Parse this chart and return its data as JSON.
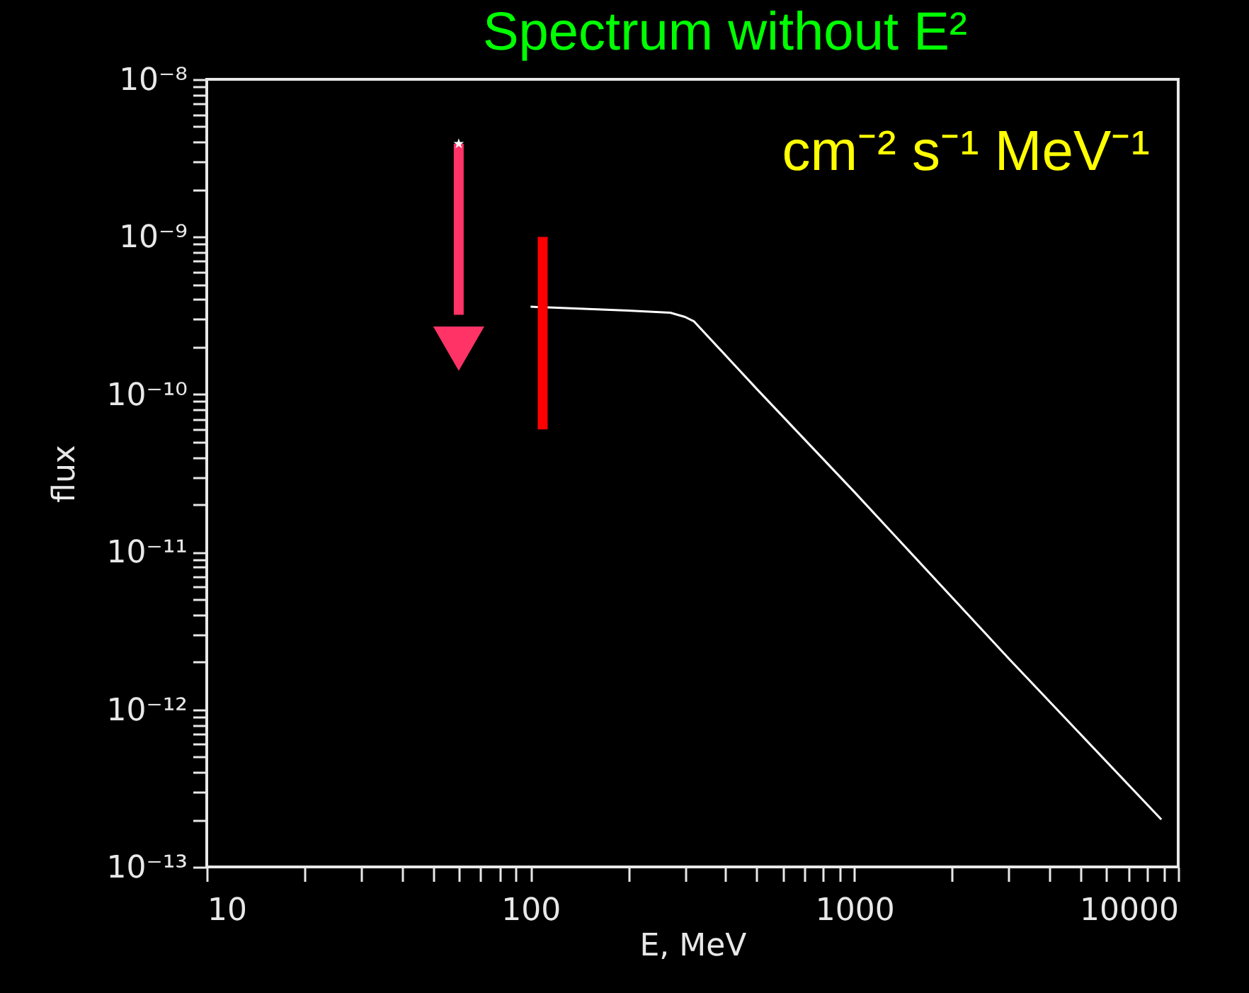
{
  "chart_data": {
    "type": "line",
    "title": "Spectrum without E²",
    "xlabel": "E, MeV",
    "ylabel": "flux",
    "log": "xy",
    "annotations": [
      "cm⁻² s⁻¹ MeV⁻¹"
    ],
    "xlim": [
      10,
      10000
    ],
    "ylim": [
      1e-13,
      1e-08
    ],
    "xticks": [
      10,
      {
        "value": 20,
        "label": null
      },
      {
        "value": 30,
        "label": null
      },
      {
        "value": 40,
        "label": null
      },
      {
        "value": 50,
        "label": null
      },
      {
        "value": 60,
        "label": null
      },
      {
        "value": 70,
        "label": null
      },
      {
        "value": 80,
        "label": null
      },
      {
        "value": 90,
        "label": null
      },
      100,
      {
        "value": 200,
        "label": null
      },
      {
        "value": 300,
        "label": null
      },
      {
        "value": 400,
        "label": null
      },
      {
        "value": 500,
        "label": null
      },
      {
        "value": 600,
        "label": null
      },
      {
        "value": 700,
        "label": null
      },
      {
        "value": 800,
        "label": null
      },
      {
        "value": 900,
        "label": null
      },
      1000,
      {
        "value": 2000,
        "label": null
      },
      {
        "value": 3000,
        "label": null
      },
      {
        "value": 4000,
        "label": null
      },
      {
        "value": 5000,
        "label": null
      },
      {
        "value": 6000,
        "label": null
      },
      {
        "value": 7000,
        "label": null
      },
      {
        "value": 8000,
        "label": null
      },
      {
        "value": 9000,
        "label": null
      },
      10000
    ],
    "yticks": [
      {
        "value": 1e-13,
        "label": "10⁻¹³"
      },
      {
        "value": 2e-13,
        "label": null
      },
      {
        "value": 3e-13,
        "label": null
      },
      {
        "value": 4e-13,
        "label": null
      },
      {
        "value": 5e-13,
        "label": null
      },
      {
        "value": 6e-13,
        "label": null
      },
      {
        "value": 7e-13,
        "label": null
      },
      {
        "value": 8e-13,
        "label": null
      },
      {
        "value": 9e-13,
        "label": null
      },
      {
        "value": 1e-12,
        "label": "10⁻¹²"
      },
      {
        "value": 2e-12,
        "label": null
      },
      {
        "value": 3e-12,
        "label": null
      },
      {
        "value": 4e-12,
        "label": null
      },
      {
        "value": 5e-12,
        "label": null
      },
      {
        "value": 6e-12,
        "label": null
      },
      {
        "value": 7e-12,
        "label": null
      },
      {
        "value": 8e-12,
        "label": null
      },
      {
        "value": 9e-12,
        "label": null
      },
      {
        "value": 1e-11,
        "label": "10⁻¹¹"
      },
      {
        "value": 2e-11,
        "label": null
      },
      {
        "value": 3e-11,
        "label": null
      },
      {
        "value": 4e-11,
        "label": null
      },
      {
        "value": 5e-11,
        "label": null
      },
      {
        "value": 6e-11,
        "label": null
      },
      {
        "value": 7e-11,
        "label": null
      },
      {
        "value": 8e-11,
        "label": null
      },
      {
        "value": 9e-11,
        "label": null
      },
      {
        "value": 1e-10,
        "label": "10⁻¹⁰"
      },
      {
        "value": 2e-10,
        "label": null
      },
      {
        "value": 3e-10,
        "label": null
      },
      {
        "value": 4e-10,
        "label": null
      },
      {
        "value": 5e-10,
        "label": null
      },
      {
        "value": 6e-10,
        "label": null
      },
      {
        "value": 7e-10,
        "label": null
      },
      {
        "value": 8e-10,
        "label": null
      },
      {
        "value": 9e-10,
        "label": null
      },
      {
        "value": 1e-09,
        "label": "10⁻⁹"
      },
      {
        "value": 2e-09,
        "label": null
      },
      {
        "value": 3e-09,
        "label": null
      },
      {
        "value": 4e-09,
        "label": null
      },
      {
        "value": 5e-09,
        "label": null
      },
      {
        "value": 6e-09,
        "label": null
      },
      {
        "value": 7e-09,
        "label": null
      },
      {
        "value": 8e-09,
        "label": null
      },
      {
        "value": 9e-09,
        "label": null
      },
      {
        "value": 1e-08,
        "label": "10⁻⁸"
      }
    ],
    "grid": false,
    "series": [
      {
        "color": "#ffffff",
        "marker": "none",
        "x": [
          100,
          200,
          270,
          300,
          320,
          500,
          1000,
          3000,
          8870
        ],
        "values": [
          3.6e-10,
          3.4e-10,
          3.3e-10,
          3.1e-10,
          2.9e-10,
          1.08e-10,
          2.4e-11,
          2.1e-12,
          2e-13
        ]
      },
      {
        "type": "line",
        "color": "#ff3366",
        "marker": "none",
        "x": [
          60,
          60
        ],
        "values": [
          3.9e-09,
          3.2e-10
        ]
      },
      {
        "type": "scatter",
        "color": "#ff3366",
        "marker": "triangle",
        "x": [
          60
        ],
        "values": [
          1.95e-10
        ]
      },
      {
        "type": "scatter",
        "color": "#ffffff",
        "marker": "star",
        "x": [
          60
        ],
        "values": [
          3.9e-09
        ]
      },
      {
        "type": "bar",
        "color": "#ff0000",
        "x": [
          109
        ],
        "base": [
          6e-11
        ],
        "values": [
          9.4e-10
        ]
      }
    ]
  }
}
